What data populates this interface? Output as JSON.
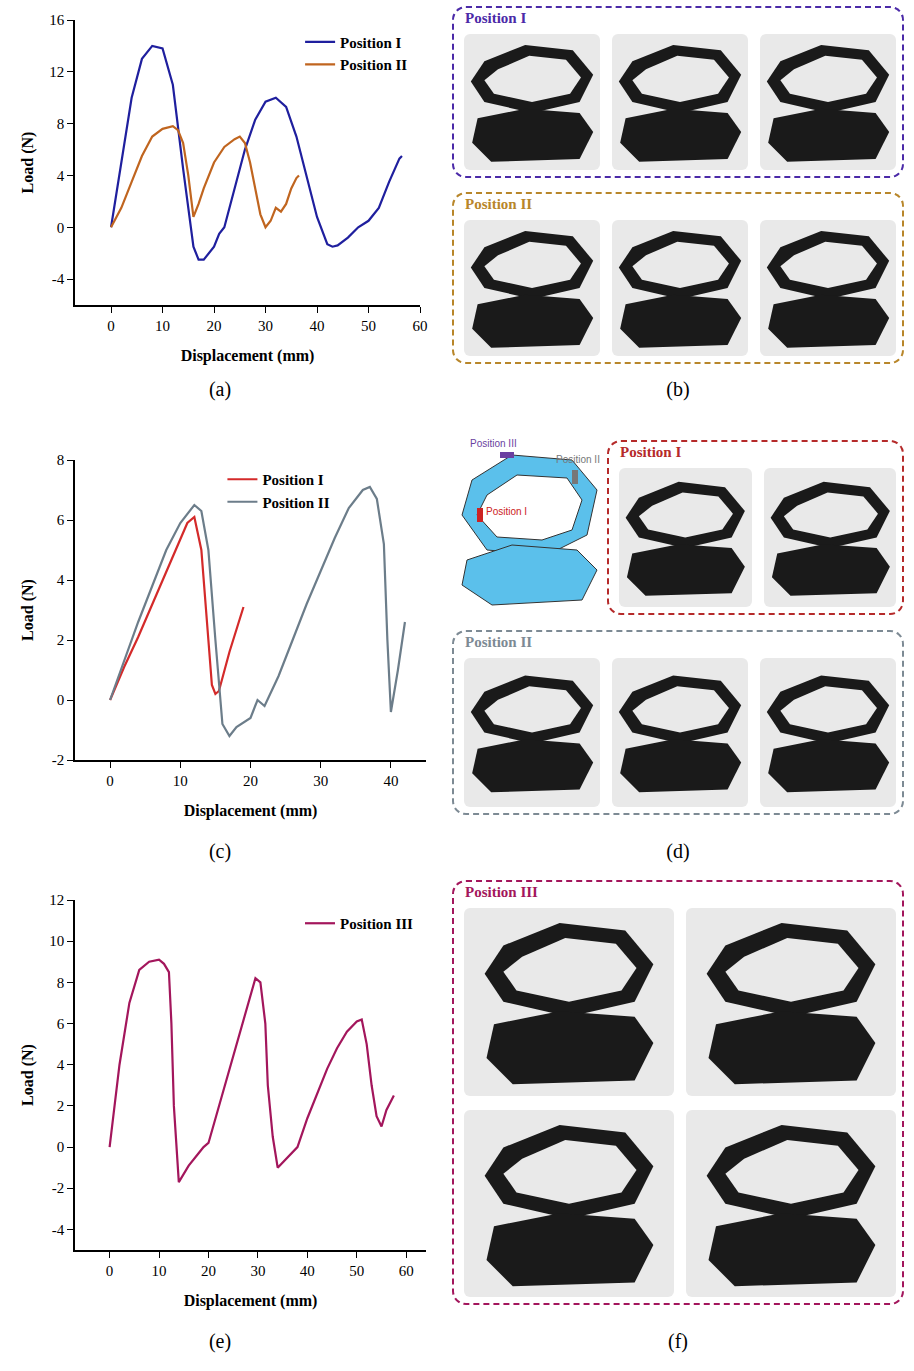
{
  "chart_data": [
    {
      "type": "line",
      "caption": "(a)",
      "x_label": "Displacement (mm)",
      "y_label": "Load (N)",
      "xlim": [
        -7,
        60
      ],
      "xticks": [
        0,
        10,
        20,
        30,
        40,
        50,
        60
      ],
      "ylim": [
        -6,
        16
      ],
      "yticks": [
        -4,
        0,
        4,
        8,
        12,
        16
      ],
      "grid": false,
      "legend": "top right",
      "series": [
        {
          "name": "Position I",
          "color": "#1f1f9e",
          "line_style": "solid",
          "x": [
            0,
            2,
            4,
            6,
            8,
            10,
            12,
            14,
            15,
            16,
            17,
            18,
            20,
            21,
            22,
            24,
            26,
            28,
            30,
            32,
            34,
            36,
            38,
            40,
            42,
            43,
            44,
            46,
            48,
            50,
            52,
            54,
            56,
            56.5
          ],
          "values": [
            0,
            5,
            10,
            13,
            14,
            13.8,
            11,
            4.5,
            1.5,
            -1.5,
            -2.5,
            -2.5,
            -1.5,
            -0.5,
            0,
            3,
            6,
            8.3,
            9.7,
            10,
            9.3,
            7,
            4,
            0.8,
            -1.3,
            -1.5,
            -1.4,
            -0.8,
            0,
            0.5,
            1.5,
            3.5,
            5.3,
            5.5
          ]
        },
        {
          "name": "Position II",
          "color": "#c0651f",
          "line_style": "solid",
          "x": [
            0,
            2,
            4,
            6,
            8,
            10,
            12,
            13,
            14,
            15,
            16,
            17,
            18,
            20,
            22,
            24,
            25,
            26,
            27,
            28,
            29,
            30,
            31,
            32,
            33,
            34,
            35,
            36,
            36.5
          ],
          "values": [
            0,
            1.5,
            3.5,
            5.5,
            7,
            7.6,
            7.8,
            7.5,
            6.5,
            4,
            0.8,
            1.8,
            3,
            5,
            6.2,
            6.8,
            7,
            6.5,
            5,
            3,
            1,
            0,
            0.5,
            1.5,
            1.2,
            1.8,
            3,
            3.8,
            4
          ]
        }
      ]
    },
    {
      "type": "line",
      "caption": "(c)",
      "x_label": "Displacement (mm)",
      "y_label": "Load (N)",
      "xlim": [
        -5,
        45
      ],
      "xticks": [
        0,
        10,
        20,
        30,
        40
      ],
      "ylim": [
        -2,
        8
      ],
      "yticks": [
        -2,
        0,
        2,
        4,
        6,
        8
      ],
      "grid": false,
      "legend": "top",
      "series": [
        {
          "name": "Position I",
          "color": "#d42a2a",
          "line_style": "solid",
          "x": [
            0,
            2,
            4,
            6,
            8,
            10,
            11,
            12,
            13,
            14,
            14.5,
            15,
            15.5,
            17,
            19
          ],
          "values": [
            0,
            1.1,
            2.1,
            3.2,
            4.3,
            5.4,
            5.9,
            6.1,
            5,
            2,
            0.5,
            0.2,
            0.3,
            1.6,
            3.1
          ]
        },
        {
          "name": "Position II",
          "color": "#6c7d8a",
          "line_style": "solid",
          "x": [
            0,
            2,
            4,
            6,
            8,
            10,
            12,
            13,
            14,
            15,
            16,
            17,
            18,
            20,
            21,
            22,
            24,
            26,
            28,
            30,
            32,
            34,
            36,
            37,
            38,
            39,
            39.5,
            40,
            41,
            42
          ],
          "values": [
            0,
            1.3,
            2.6,
            3.8,
            5,
            5.9,
            6.5,
            6.3,
            5,
            2,
            -0.8,
            -1.2,
            -0.9,
            -0.6,
            0,
            -0.2,
            0.8,
            2,
            3.2,
            4.3,
            5.4,
            6.4,
            7,
            7.1,
            6.7,
            5.2,
            2,
            -0.4,
            1,
            2.6
          ]
        }
      ]
    },
    {
      "type": "line",
      "caption": "(e)",
      "x_label": "Displacement (mm)",
      "y_label": "Load (N)",
      "xlim": [
        -7,
        64
      ],
      "xticks": [
        0,
        10,
        20,
        30,
        40,
        50,
        60
      ],
      "ylim": [
        -5,
        12
      ],
      "yticks": [
        -4,
        -2,
        0,
        2,
        4,
        6,
        8,
        10,
        12
      ],
      "grid": false,
      "legend": "top right",
      "series": [
        {
          "name": "Position III",
          "color": "#a3165c",
          "line_style": "solid",
          "x": [
            0,
            2,
            4,
            6,
            8,
            10,
            11,
            12,
            12.5,
            13,
            14,
            16,
            18,
            19,
            20,
            22,
            24,
            26,
            28,
            29.5,
            30.5,
            31.5,
            32,
            33,
            34,
            36,
            38,
            40,
            42,
            44,
            46,
            48,
            50,
            51,
            52,
            53,
            54,
            55,
            56,
            57,
            57.5
          ],
          "values": [
            0,
            4,
            7,
            8.6,
            9,
            9.1,
            8.9,
            8.5,
            6,
            2,
            -1.7,
            -0.9,
            -0.3,
            0,
            0.2,
            1.9,
            3.6,
            5.3,
            6.9,
            8.2,
            8,
            6,
            3,
            0.5,
            -1,
            -0.5,
            0,
            1.4,
            2.6,
            3.8,
            4.8,
            5.6,
            6.1,
            6.2,
            5,
            3,
            1.5,
            1,
            1.8,
            2.3,
            2.5
          ]
        }
      ]
    }
  ],
  "photo_panels": [
    {
      "caption": "(b)",
      "groups": [
        {
          "title": "Position I",
          "color": "#4b2aa8",
          "photos": 3
        },
        {
          "title": "Position II",
          "color": "#b8862a",
          "photos": 3
        }
      ]
    },
    {
      "caption": "(d)",
      "diagram_labels": [
        "Position III",
        "Position II",
        "Position I"
      ],
      "groups": [
        {
          "title": "Position I",
          "color": "#b52a2a",
          "photos": 2
        },
        {
          "title": "Position II",
          "color": "#7d8a94",
          "photos": 3
        }
      ]
    },
    {
      "caption": "(f)",
      "groups": [
        {
          "title": "Position III",
          "color": "#a3165c",
          "photos": 4
        }
      ]
    }
  ]
}
